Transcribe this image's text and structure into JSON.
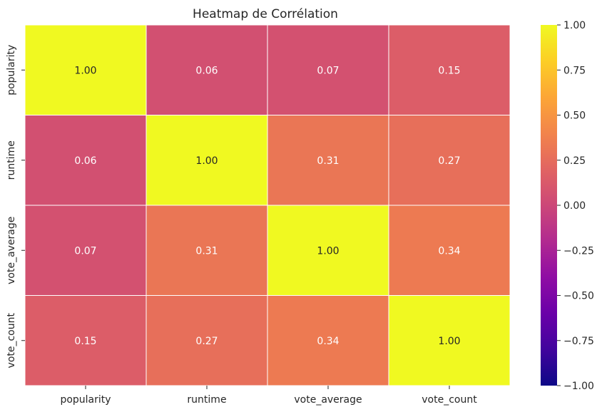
{
  "chart_data": {
    "type": "heatmap",
    "title": "Heatmap de Corrélation",
    "xlabel": "",
    "ylabel": "",
    "x_categories": [
      "popularity",
      "runtime",
      "vote_average",
      "vote_count"
    ],
    "y_categories": [
      "popularity",
      "runtime",
      "vote_average",
      "vote_count"
    ],
    "values": [
      [
        1.0,
        0.06,
        0.07,
        0.15
      ],
      [
        0.06,
        1.0,
        0.31,
        0.27
      ],
      [
        0.07,
        0.31,
        1.0,
        0.34
      ],
      [
        0.15,
        0.27,
        0.34,
        1.0
      ]
    ],
    "value_labels": [
      [
        "1.00",
        "0.06",
        "0.07",
        "0.15"
      ],
      [
        "0.06",
        "1.00",
        "0.31",
        "0.27"
      ],
      [
        "0.07",
        "0.31",
        "1.00",
        "0.34"
      ],
      [
        "0.15",
        "0.27",
        "0.34",
        "1.00"
      ]
    ],
    "colormap": "plasma",
    "vmin": -1.0,
    "vmax": 1.0,
    "colorbar_ticks": [
      1.0,
      0.75,
      0.5,
      0.25,
      0.0,
      -0.25,
      -0.5,
      -0.75,
      -1.0
    ],
    "colorbar_tick_labels": [
      "1.00",
      "0.75",
      "0.50",
      "0.25",
      "0.00",
      "−0.25",
      "−0.50",
      "−0.75",
      "−1.00"
    ],
    "grid": true,
    "grid_color": "#ffffff",
    "legend": "colorbar-right"
  }
}
